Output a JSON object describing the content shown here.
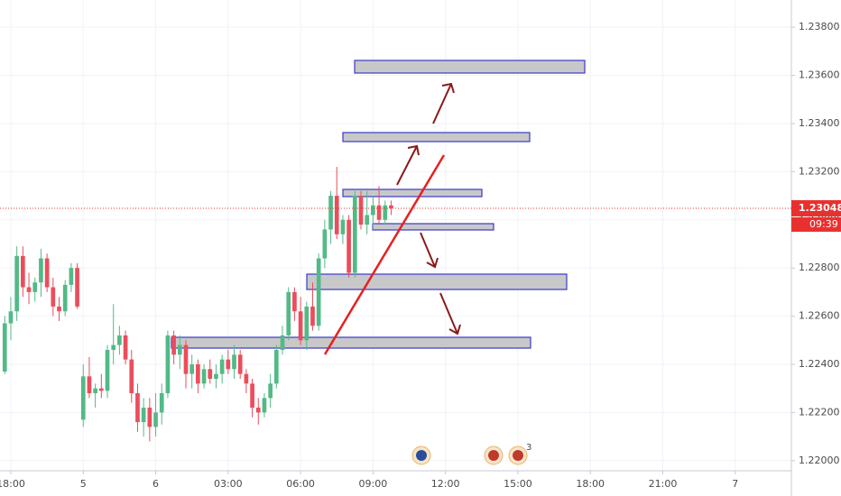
{
  "chart_data": {
    "type": "candlestick",
    "x": [
      0,
      1,
      2,
      3,
      4,
      5,
      6,
      7,
      8,
      9,
      10,
      11,
      12,
      13,
      14,
      15,
      16,
      17,
      18,
      19,
      20,
      21,
      22,
      23,
      24,
      25,
      26,
      27,
      28,
      29,
      30,
      31,
      32,
      33,
      34,
      35,
      36,
      37,
      38,
      39,
      40,
      41,
      42,
      43,
      44,
      45,
      46,
      47,
      48,
      49,
      50,
      51,
      52,
      53,
      54,
      55,
      56,
      57,
      58,
      59,
      60,
      61,
      62,
      63,
      64
    ],
    "open": [
      1.2237,
      1.2257,
      1.2262,
      1.2285,
      1.2272,
      1.227,
      1.2274,
      1.2284,
      1.2272,
      1.2264,
      1.2262,
      1.2273,
      1.228,
      1.2217,
      1.2235,
      1.2228,
      1.223,
      1.2229,
      1.2246,
      1.2248,
      1.2252,
      1.2242,
      1.2228,
      1.2216,
      1.2222,
      1.2214,
      1.222,
      1.2228,
      1.2252,
      1.2244,
      1.2248,
      1.2236,
      1.224,
      1.2232,
      1.2238,
      1.2234,
      1.2236,
      1.2242,
      1.2238,
      1.2244,
      1.2236,
      1.2232,
      1.2222,
      1.222,
      1.2226,
      1.2232,
      1.2246,
      1.2252,
      1.227,
      1.2262,
      1.225,
      1.2264,
      1.2256,
      1.2284,
      1.2296,
      1.231,
      1.2294,
      1.23,
      1.2278,
      1.231,
      1.2298,
      1.2302,
      1.2306,
      1.23,
      1.2306
    ],
    "high": [
      1.226,
      1.2268,
      1.2289,
      1.2289,
      1.2278,
      1.2276,
      1.2288,
      1.2286,
      1.2276,
      1.2268,
      1.2275,
      1.2282,
      1.2282,
      1.224,
      1.2243,
      1.2232,
      1.2236,
      1.2248,
      1.2265,
      1.2256,
      1.2254,
      1.2246,
      1.2232,
      1.2226,
      1.2226,
      1.2228,
      1.2232,
      1.2254,
      1.2254,
      1.2252,
      1.225,
      1.2244,
      1.2242,
      1.224,
      1.2242,
      1.224,
      1.2244,
      1.2246,
      1.2248,
      1.2246,
      1.2238,
      1.2234,
      1.2226,
      1.2228,
      1.2236,
      1.2248,
      1.2256,
      1.2272,
      1.2272,
      1.2268,
      1.2266,
      1.2274,
      1.2286,
      1.23,
      1.2312,
      1.2322,
      1.2302,
      1.2302,
      1.2312,
      1.2312,
      1.2312,
      1.231,
      1.2314,
      1.2308,
      1.2308
    ],
    "low": [
      1.2236,
      1.225,
      1.2258,
      1.2268,
      1.2265,
      1.2266,
      1.2268,
      1.227,
      1.226,
      1.2258,
      1.226,
      1.227,
      1.2263,
      1.2214,
      1.2226,
      1.2222,
      1.2226,
      1.2226,
      1.224,
      1.2244,
      1.224,
      1.2224,
      1.2212,
      1.221,
      1.2208,
      1.221,
      1.2215,
      1.2226,
      1.224,
      1.2238,
      1.223,
      1.223,
      1.2228,
      1.223,
      1.2232,
      1.223,
      1.2232,
      1.2236,
      1.2234,
      1.2234,
      1.2228,
      1.2218,
      1.2215,
      1.2218,
      1.2222,
      1.223,
      1.2244,
      1.225,
      1.2258,
      1.2248,
      1.2246,
      1.2254,
      1.2254,
      1.228,
      1.229,
      1.2292,
      1.229,
      1.2276,
      1.2276,
      1.2296,
      1.2294,
      1.2296,
      1.2298,
      1.2298,
      1.2302
    ],
    "close": [
      1.2257,
      1.2262,
      1.2285,
      1.2272,
      1.227,
      1.2274,
      1.2284,
      1.2272,
      1.2264,
      1.2262,
      1.2273,
      1.228,
      1.2264,
      1.2235,
      1.2228,
      1.223,
      1.2229,
      1.2246,
      1.2248,
      1.2252,
      1.2242,
      1.2228,
      1.2216,
      1.2222,
      1.2214,
      1.222,
      1.2228,
      1.2252,
      1.2244,
      1.2248,
      1.2236,
      1.224,
      1.2232,
      1.2238,
      1.2234,
      1.2236,
      1.2242,
      1.2238,
      1.2244,
      1.2236,
      1.2232,
      1.2222,
      1.222,
      1.2226,
      1.2232,
      1.2246,
      1.2252,
      1.227,
      1.2262,
      1.225,
      1.2264,
      1.2256,
      1.2284,
      1.2296,
      1.231,
      1.2294,
      1.23,
      1.2278,
      1.231,
      1.2298,
      1.2302,
      1.2306,
      1.23,
      1.2306,
      1.23048
    ],
    "up_color": "#53b987",
    "down_color": "#eb4d5c",
    "xlim": [
      -0.79,
      130.3
    ],
    "xticks": [
      {
        "value": 1,
        "label": "18:00"
      },
      {
        "value": 13,
        "label": "5"
      },
      {
        "value": 25,
        "label": "6"
      },
      {
        "value": 37,
        "label": "03:00"
      },
      {
        "value": 49,
        "label": "06:00"
      },
      {
        "value": 61,
        "label": "09:00"
      },
      {
        "value": 73,
        "label": "12:00"
      },
      {
        "value": 85,
        "label": "15:00"
      },
      {
        "value": 97,
        "label": "18:00"
      },
      {
        "value": 109,
        "label": "21:00"
      },
      {
        "value": 121,
        "label": "7"
      }
    ],
    "ylim": [
      1.21958,
      1.23913
    ],
    "yticks": [
      {
        "value": 1.22,
        "label": "1.22000"
      },
      {
        "value": 1.222,
        "label": "1.22200"
      },
      {
        "value": 1.224,
        "label": "1.22400"
      },
      {
        "value": 1.226,
        "label": "1.22600"
      },
      {
        "value": 1.228,
        "label": "1.22800"
      },
      {
        "value": 1.23,
        "label": "1.23000"
      },
      {
        "value": 1.232,
        "label": "1.23200"
      },
      {
        "value": 1.234,
        "label": "1.23400"
      },
      {
        "value": 1.236,
        "label": "1.23600"
      },
      {
        "value": 1.238,
        "label": "1.23800"
      }
    ],
    "grid": true,
    "last_price": 1.23048,
    "last_price_color": "#e8312f",
    "countdown": "09:39",
    "event_count": "3"
  }
}
